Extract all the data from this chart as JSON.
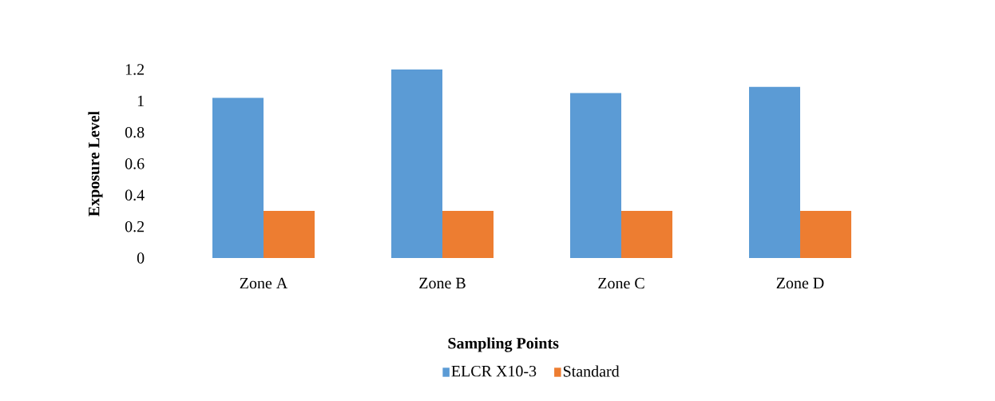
{
  "chart_data": {
    "type": "bar",
    "xlabel": "Sampling Points",
    "ylabel": "Exposure Level",
    "categories": [
      "Zone A",
      "Zone B",
      "Zone C",
      "Zone D"
    ],
    "series": [
      {
        "name": "ELCR X10-3",
        "color": "#5b9bd5",
        "values": [
          1.02,
          1.2,
          1.05,
          1.09
        ]
      },
      {
        "name": "Standard",
        "color": "#ed7d31",
        "values": [
          0.3,
          0.3,
          0.3,
          0.3
        ]
      }
    ],
    "ylim": [
      0,
      1.2
    ],
    "yticks": [
      0,
      0.2,
      0.4,
      0.6,
      0.8,
      1,
      1.2
    ],
    "legend": "bottom"
  }
}
